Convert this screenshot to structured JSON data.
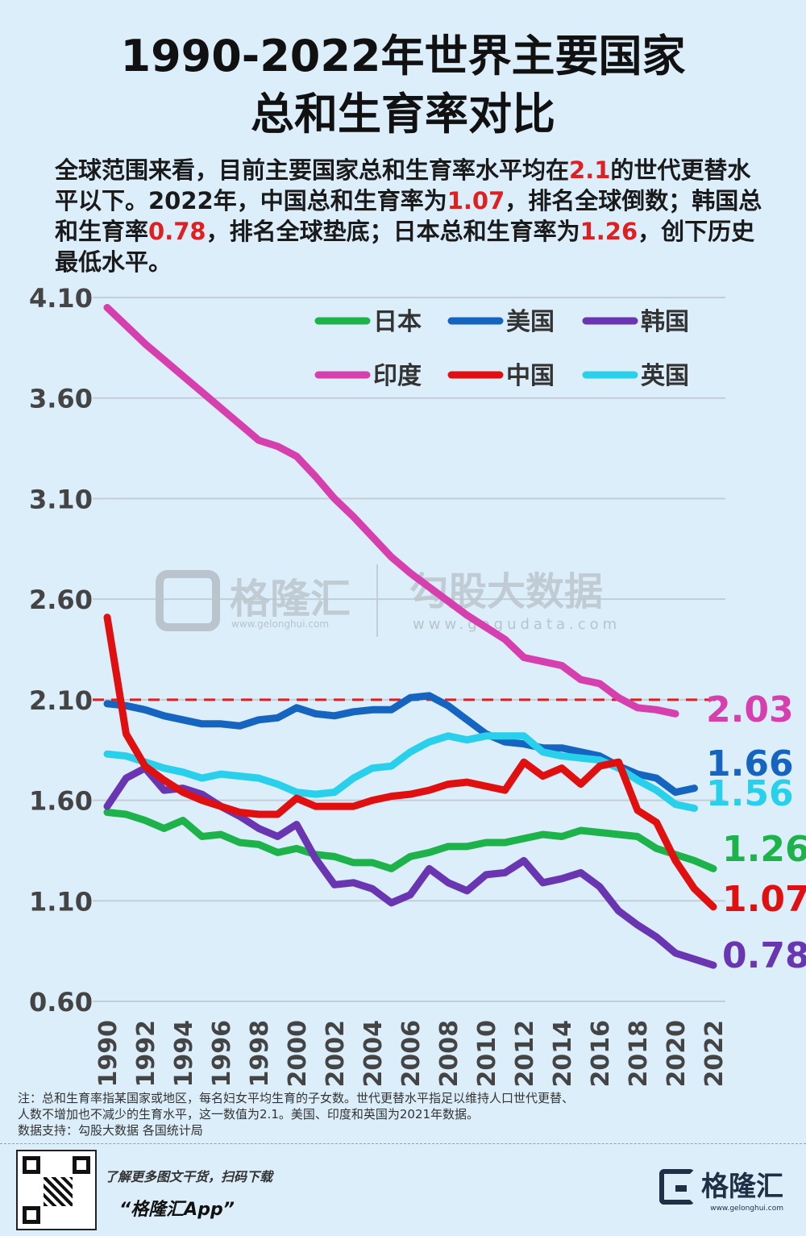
{
  "title_line1": "1990-2022年世界主要国家",
  "title_line2": "总和生育率对比",
  "intro": {
    "p1": "全球范围来看，目前主要国家总和生育率水平均在",
    "h1": "2.1",
    "p2": "的世代更替水平以下。2022年，中国总和生育率为",
    "h2": "1.07",
    "p3": "，排名全球倒数；韩国总和生育率",
    "h3": "0.78",
    "p4": "，排名全球垫底；日本总和生育率为",
    "h4": "1.26",
    "p5": "，创下历史最低水平。"
  },
  "watermark": {
    "brand1": "格隆汇",
    "url1": "www.gelonghui.com",
    "brand2": "勾股大数据",
    "url2": "www.gogudata.com"
  },
  "notes": {
    "line1": "注：总和生育率指某国家或地区，每名妇女平均生育的子女数。世代更替水平指足以维持人口世代更替、",
    "line2": "人数不增加也不减少的生育水平，这一数值为2.1。美国、印度和英国为2021年数据。",
    "line3": "数据支持：勾股大数据 各国统计局"
  },
  "footer": {
    "text1": "了解更多图文干货，扫码下载",
    "text2": "“格隆汇App”",
    "brand": "格隆汇",
    "brand_url": "www.gelonghui.com"
  },
  "chart_data": {
    "type": "line",
    "ylim": [
      0.6,
      4.1
    ],
    "yticks": [
      "4.10",
      "3.60",
      "3.10",
      "2.60",
      "2.10",
      "1.60",
      "1.10",
      "0.60"
    ],
    "ytick_values": [
      4.1,
      3.6,
      3.1,
      2.6,
      2.1,
      1.6,
      1.1,
      0.6
    ],
    "xticks": [
      "1990",
      "1992",
      "1994",
      "1996",
      "1998",
      "2000",
      "2002",
      "2004",
      "2006",
      "2008",
      "2010",
      "2012",
      "2014",
      "2016",
      "2018",
      "2020",
      "2022"
    ],
    "x_start": 1990,
    "x_end": 2022,
    "grid": true,
    "legend_placement": "top-right",
    "reference_line": {
      "value": 2.1,
      "color": "#e02020"
    },
    "series": [
      {
        "name": "日本",
        "color": "#1db34a",
        "end_label": "1.26",
        "values": [
          1.54,
          1.53,
          1.5,
          1.46,
          1.5,
          1.42,
          1.43,
          1.39,
          1.38,
          1.34,
          1.36,
          1.33,
          1.32,
          1.29,
          1.29,
          1.26,
          1.32,
          1.34,
          1.37,
          1.37,
          1.39,
          1.39,
          1.41,
          1.43,
          1.42,
          1.45,
          1.44,
          1.43,
          1.42,
          1.36,
          1.33,
          1.3,
          1.26
        ]
      },
      {
        "name": "美国",
        "color": "#1565c0",
        "end_label": "1.66",
        "values": [
          2.08,
          2.07,
          2.05,
          2.02,
          2.0,
          1.98,
          1.98,
          1.97,
          2.0,
          2.01,
          2.06,
          2.03,
          2.02,
          2.04,
          2.05,
          2.05,
          2.11,
          2.12,
          2.07,
          2.0,
          1.93,
          1.89,
          1.88,
          1.86,
          1.86,
          1.84,
          1.82,
          1.77,
          1.73,
          1.71,
          1.64,
          1.66
        ]
      },
      {
        "name": "韩国",
        "color": "#6a35b0",
        "end_label": "0.78",
        "values": [
          1.57,
          1.71,
          1.76,
          1.65,
          1.66,
          1.63,
          1.57,
          1.52,
          1.46,
          1.42,
          1.48,
          1.31,
          1.18,
          1.19,
          1.16,
          1.09,
          1.13,
          1.26,
          1.19,
          1.15,
          1.23,
          1.24,
          1.3,
          1.19,
          1.21,
          1.24,
          1.17,
          1.05,
          0.98,
          0.92,
          0.84,
          0.81,
          0.78
        ]
      },
      {
        "name": "印度",
        "color": "#d63fae",
        "end_label": "2.03",
        "values": [
          4.05,
          3.96,
          3.87,
          3.79,
          3.71,
          3.63,
          3.55,
          3.47,
          3.39,
          3.36,
          3.31,
          3.21,
          3.1,
          3.01,
          2.91,
          2.81,
          2.73,
          2.66,
          2.59,
          2.52,
          2.46,
          2.4,
          2.31,
          2.29,
          2.27,
          2.2,
          2.18,
          2.11,
          2.06,
          2.05,
          2.03
        ]
      },
      {
        "name": "中国",
        "color": "#e01010",
        "end_label": "1.07",
        "values": [
          2.51,
          1.93,
          1.77,
          1.7,
          1.64,
          1.6,
          1.57,
          1.54,
          1.53,
          1.53,
          1.61,
          1.57,
          1.57,
          1.57,
          1.6,
          1.62,
          1.63,
          1.65,
          1.68,
          1.69,
          1.67,
          1.65,
          1.79,
          1.72,
          1.76,
          1.68,
          1.77,
          1.79,
          1.55,
          1.49,
          1.3,
          1.16,
          1.07
        ]
      },
      {
        "name": "英国",
        "color": "#29d0ec",
        "end_label": "1.56",
        "values": [
          1.83,
          1.82,
          1.79,
          1.76,
          1.74,
          1.71,
          1.73,
          1.72,
          1.71,
          1.68,
          1.64,
          1.63,
          1.64,
          1.71,
          1.76,
          1.77,
          1.84,
          1.89,
          1.92,
          1.9,
          1.92,
          1.92,
          1.92,
          1.84,
          1.82,
          1.81,
          1.8,
          1.76,
          1.7,
          1.65,
          1.58,
          1.56
        ]
      }
    ]
  }
}
